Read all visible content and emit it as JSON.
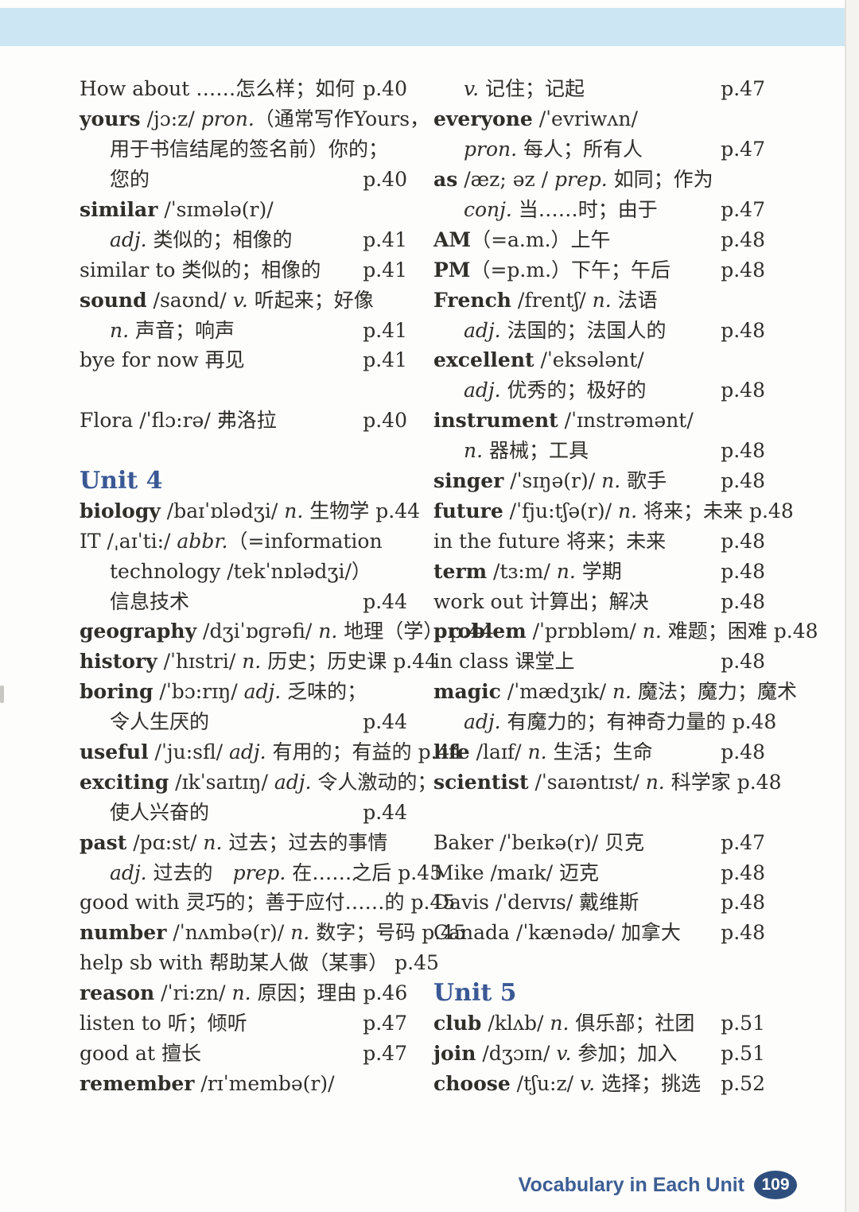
{
  "colors": {
    "unit_heading_blue": "#3a5894",
    "footer_blue": "#3d5e94",
    "badge_bg": "#2e4f7e",
    "top_bar_blue": "#cde6f4",
    "body_text": "#302e29"
  },
  "footer": {
    "title": "Vocabulary in Each Unit",
    "page_number": "109"
  },
  "columns": {
    "left": [
      {
        "type": "entry",
        "segments": [
          [
            "n",
            "How about ……怎么样；如何"
          ]
        ],
        "page": "p.40"
      },
      {
        "type": "entry",
        "segments": [
          [
            "b",
            "yours"
          ],
          [
            "n",
            " /jɔ:z/ "
          ],
          [
            "i",
            "pron."
          ],
          [
            "n",
            "（通常写作Yours，"
          ]
        ],
        "page": ""
      },
      {
        "type": "entry",
        "indent": true,
        "segments": [
          [
            "n",
            "用于书信结尾的签名前）你的；"
          ]
        ],
        "page": ""
      },
      {
        "type": "entry",
        "indent": true,
        "segments": [
          [
            "n",
            "您的"
          ]
        ],
        "page": "p.40"
      },
      {
        "type": "entry",
        "segments": [
          [
            "b",
            "similar"
          ],
          [
            "n",
            " /ˈsɪmələ(r)/"
          ]
        ],
        "page": ""
      },
      {
        "type": "entry",
        "indent": true,
        "segments": [
          [
            "i",
            "adj."
          ],
          [
            "n",
            " 类似的；相像的"
          ]
        ],
        "page": "p.41"
      },
      {
        "type": "entry",
        "segments": [
          [
            "n",
            "similar to 类似的；相像的"
          ]
        ],
        "page": "p.41"
      },
      {
        "type": "entry",
        "segments": [
          [
            "b",
            "sound"
          ],
          [
            "n",
            " /saʊnd/ "
          ],
          [
            "i",
            "v."
          ],
          [
            "n",
            " 听起来；好像"
          ]
        ],
        "page": ""
      },
      {
        "type": "entry",
        "indent": true,
        "segments": [
          [
            "i",
            "n."
          ],
          [
            "n",
            " 声音；响声"
          ]
        ],
        "page": "p.41"
      },
      {
        "type": "entry",
        "segments": [
          [
            "n",
            "bye for now 再见"
          ]
        ],
        "page": "p.41"
      },
      {
        "type": "blank"
      },
      {
        "type": "entry",
        "segments": [
          [
            "n",
            "Flora /ˈflɔ:rə/ 弗洛拉"
          ]
        ],
        "page": "p.40"
      },
      {
        "type": "blank"
      },
      {
        "type": "head",
        "segments": [
          [
            "n",
            "Unit 4"
          ]
        ],
        "page": ""
      },
      {
        "type": "entry",
        "segments": [
          [
            "b",
            "biology"
          ],
          [
            "n",
            " /baɪˈɒlədʒi/ "
          ],
          [
            "i",
            "n."
          ],
          [
            "n",
            " 生物学"
          ]
        ],
        "page": "p.44"
      },
      {
        "type": "entry",
        "segments": [
          [
            "n",
            "IT /ˌaɪˈti:/ "
          ],
          [
            "i",
            "abbr."
          ],
          [
            "n",
            "（=information"
          ]
        ],
        "page": ""
      },
      {
        "type": "entry",
        "indent": true,
        "segments": [
          [
            "n",
            "technology /tekˈnɒlədʒi/）"
          ]
        ],
        "page": ""
      },
      {
        "type": "entry",
        "indent": true,
        "segments": [
          [
            "n",
            "信息技术"
          ]
        ],
        "page": "p.44"
      },
      {
        "type": "entry",
        "segments": [
          [
            "b",
            "geography"
          ],
          [
            "n",
            " /dʒiˈɒɡrəfi/ "
          ],
          [
            "i",
            "n."
          ],
          [
            "n",
            " 地理（学）"
          ]
        ],
        "page": "p.44"
      },
      {
        "type": "entry",
        "segments": [
          [
            "b",
            "history"
          ],
          [
            "n",
            " /ˈhɪstri/ "
          ],
          [
            "i",
            "n."
          ],
          [
            "n",
            " 历史；历史课"
          ]
        ],
        "page": "p.44"
      },
      {
        "type": "entry",
        "segments": [
          [
            "b",
            "boring"
          ],
          [
            "n",
            " /ˈbɔ:rɪŋ/ "
          ],
          [
            "i",
            "adj."
          ],
          [
            "n",
            " 乏味的；"
          ]
        ],
        "page": ""
      },
      {
        "type": "entry",
        "indent": true,
        "segments": [
          [
            "n",
            "令人生厌的"
          ]
        ],
        "page": "p.44"
      },
      {
        "type": "entry",
        "segments": [
          [
            "b",
            "useful"
          ],
          [
            "n",
            " /ˈju:sfl/ "
          ],
          [
            "i",
            "adj."
          ],
          [
            "n",
            " 有用的；有益的"
          ]
        ],
        "page": "p.44"
      },
      {
        "type": "entry",
        "segments": [
          [
            "b",
            "exciting"
          ],
          [
            "n",
            " /ɪkˈsaɪtɪŋ/ "
          ],
          [
            "i",
            "adj."
          ],
          [
            "n",
            " 令人激动的；"
          ]
        ],
        "page": ""
      },
      {
        "type": "entry",
        "indent": true,
        "segments": [
          [
            "n",
            "使人兴奋的"
          ]
        ],
        "page": "p.44"
      },
      {
        "type": "entry",
        "segments": [
          [
            "b",
            "past"
          ],
          [
            "n",
            " /pɑ:st/ "
          ],
          [
            "i",
            "n."
          ],
          [
            "n",
            " 过去；过去的事情"
          ]
        ],
        "page": ""
      },
      {
        "type": "entry",
        "indent": true,
        "segments": [
          [
            "i",
            "adj."
          ],
          [
            "n",
            " 过去的　"
          ],
          [
            "i",
            "prep."
          ],
          [
            "n",
            " 在……之后"
          ]
        ],
        "page": "p.45"
      },
      {
        "type": "entry",
        "segments": [
          [
            "n",
            "good with 灵巧的；善于应付……的"
          ]
        ],
        "page": "p.45"
      },
      {
        "type": "entry",
        "segments": [
          [
            "b",
            "number"
          ],
          [
            "n",
            " /ˈnʌmbə(r)/ "
          ],
          [
            "i",
            "n."
          ],
          [
            "n",
            " 数字；号码"
          ]
        ],
        "page": "p.45"
      },
      {
        "type": "entry",
        "segments": [
          [
            "n",
            "help sb with 帮助某人做（某事）"
          ]
        ],
        "page": "p.45"
      },
      {
        "type": "entry",
        "segments": [
          [
            "b",
            "reason"
          ],
          [
            "n",
            " /ˈri:zn/ "
          ],
          [
            "i",
            "n."
          ],
          [
            "n",
            " 原因；理由"
          ]
        ],
        "page": "p.46"
      },
      {
        "type": "entry",
        "segments": [
          [
            "n",
            "listen to 听；倾听"
          ]
        ],
        "page": "p.47"
      },
      {
        "type": "entry",
        "segments": [
          [
            "n",
            "good at 擅长"
          ]
        ],
        "page": "p.47"
      },
      {
        "type": "entry",
        "segments": [
          [
            "b",
            "remember"
          ],
          [
            "n",
            " /rɪˈmembə(r)/"
          ]
        ],
        "page": ""
      }
    ],
    "right": [
      {
        "type": "entry",
        "indent": true,
        "segments": [
          [
            "i",
            "v."
          ],
          [
            "n",
            " 记住；记起"
          ]
        ],
        "page": "p.47"
      },
      {
        "type": "entry",
        "segments": [
          [
            "b",
            "everyone"
          ],
          [
            "n",
            " /ˈevriwʌn/"
          ]
        ],
        "page": ""
      },
      {
        "type": "entry",
        "indent": true,
        "segments": [
          [
            "i",
            "pron."
          ],
          [
            "n",
            " 每人；所有人"
          ]
        ],
        "page": "p.47"
      },
      {
        "type": "entry",
        "segments": [
          [
            "b",
            "as"
          ],
          [
            "n",
            " /æz; əz / "
          ],
          [
            "i",
            "prep."
          ],
          [
            "n",
            " 如同；作为"
          ]
        ],
        "page": ""
      },
      {
        "type": "entry",
        "indent": true,
        "segments": [
          [
            "i",
            "conj."
          ],
          [
            "n",
            " 当……时；由于"
          ]
        ],
        "page": "p.47"
      },
      {
        "type": "entry",
        "segments": [
          [
            "b",
            "AM"
          ],
          [
            "n",
            "（=a.m.）上午"
          ]
        ],
        "page": "p.48"
      },
      {
        "type": "entry",
        "segments": [
          [
            "b",
            "PM"
          ],
          [
            "n",
            "（=p.m.）下午；午后"
          ]
        ],
        "page": "p.48"
      },
      {
        "type": "entry",
        "segments": [
          [
            "b",
            "French"
          ],
          [
            "n",
            " /frentʃ/ "
          ],
          [
            "i",
            "n."
          ],
          [
            "n",
            " 法语"
          ]
        ],
        "page": ""
      },
      {
        "type": "entry",
        "indent": true,
        "segments": [
          [
            "i",
            "adj."
          ],
          [
            "n",
            " 法国的；法国人的"
          ]
        ],
        "page": "p.48"
      },
      {
        "type": "entry",
        "segments": [
          [
            "b",
            "excellent"
          ],
          [
            "n",
            " /ˈeksələnt/"
          ]
        ],
        "page": ""
      },
      {
        "type": "entry",
        "indent": true,
        "segments": [
          [
            "i",
            "adj."
          ],
          [
            "n",
            " 优秀的；极好的"
          ]
        ],
        "page": "p.48"
      },
      {
        "type": "entry",
        "segments": [
          [
            "b",
            "instrument"
          ],
          [
            "n",
            " /ˈɪnstrəmənt/"
          ]
        ],
        "page": ""
      },
      {
        "type": "entry",
        "indent": true,
        "segments": [
          [
            "i",
            "n."
          ],
          [
            "n",
            " 器械；工具"
          ]
        ],
        "page": "p.48"
      },
      {
        "type": "entry",
        "segments": [
          [
            "b",
            "singer"
          ],
          [
            "n",
            " /ˈsɪŋə(r)/ "
          ],
          [
            "i",
            "n."
          ],
          [
            "n",
            " 歌手"
          ]
        ],
        "page": "p.48"
      },
      {
        "type": "entry",
        "segments": [
          [
            "b",
            "future"
          ],
          [
            "n",
            " /ˈfju:tʃə(r)/ "
          ],
          [
            "i",
            "n."
          ],
          [
            "n",
            " 将来；未来"
          ]
        ],
        "page": "p.48"
      },
      {
        "type": "entry",
        "segments": [
          [
            "n",
            "in the future 将来；未来"
          ]
        ],
        "page": "p.48"
      },
      {
        "type": "entry",
        "segments": [
          [
            "b",
            "term"
          ],
          [
            "n",
            " /tɜ:m/ "
          ],
          [
            "i",
            "n."
          ],
          [
            "n",
            " 学期"
          ]
        ],
        "page": "p.48"
      },
      {
        "type": "entry",
        "segments": [
          [
            "n",
            "work out 计算出；解决"
          ]
        ],
        "page": "p.48"
      },
      {
        "type": "entry",
        "segments": [
          [
            "b",
            "problem"
          ],
          [
            "n",
            " /ˈprɒbləm/ "
          ],
          [
            "i",
            "n."
          ],
          [
            "n",
            " 难题；困难"
          ]
        ],
        "page": "p.48"
      },
      {
        "type": "entry",
        "segments": [
          [
            "n",
            "in class 课堂上"
          ]
        ],
        "page": "p.48"
      },
      {
        "type": "entry",
        "segments": [
          [
            "b",
            "magic"
          ],
          [
            "n",
            " /ˈmædʒɪk/ "
          ],
          [
            "i",
            "n."
          ],
          [
            "n",
            " 魔法；魔力；魔术"
          ]
        ],
        "page": ""
      },
      {
        "type": "entry",
        "indent": true,
        "segments": [
          [
            "i",
            "adj."
          ],
          [
            "n",
            " 有魔力的；有神奇力量的"
          ]
        ],
        "page": "p.48"
      },
      {
        "type": "entry",
        "segments": [
          [
            "b",
            "life"
          ],
          [
            "n",
            " /laɪf/ "
          ],
          [
            "i",
            "n."
          ],
          [
            "n",
            " 生活；生命"
          ]
        ],
        "page": "p.48"
      },
      {
        "type": "entry",
        "segments": [
          [
            "b",
            "scientist"
          ],
          [
            "n",
            " /ˈsaɪəntɪst/ "
          ],
          [
            "i",
            "n."
          ],
          [
            "n",
            " 科学家"
          ]
        ],
        "page": "p.48"
      },
      {
        "type": "blank"
      },
      {
        "type": "entry",
        "segments": [
          [
            "n",
            "Baker /ˈbeɪkə(r)/ 贝克"
          ]
        ],
        "page": "p.47"
      },
      {
        "type": "entry",
        "segments": [
          [
            "n",
            "Mike /maɪk/ 迈克"
          ]
        ],
        "page": "p.48"
      },
      {
        "type": "entry",
        "segments": [
          [
            "n",
            "Davis /ˈdeɪvɪs/ 戴维斯"
          ]
        ],
        "page": "p.48"
      },
      {
        "type": "entry",
        "segments": [
          [
            "n",
            "Canada /ˈkænədə/ 加拿大"
          ]
        ],
        "page": "p.48"
      },
      {
        "type": "blank"
      },
      {
        "type": "head",
        "segments": [
          [
            "n",
            "Unit 5"
          ]
        ],
        "page": ""
      },
      {
        "type": "entry",
        "segments": [
          [
            "b",
            "club"
          ],
          [
            "n",
            " /klʌb/ "
          ],
          [
            "i",
            "n."
          ],
          [
            "n",
            " 俱乐部；社团"
          ]
        ],
        "page": "p.51"
      },
      {
        "type": "entry",
        "segments": [
          [
            "b",
            "join"
          ],
          [
            "n",
            " /dʒɔɪn/ "
          ],
          [
            "i",
            "v."
          ],
          [
            "n",
            " 参加；加入"
          ]
        ],
        "page": "p.51"
      },
      {
        "type": "entry",
        "segments": [
          [
            "b",
            "choose"
          ],
          [
            "n",
            " /tʃu:z/ "
          ],
          [
            "i",
            "v."
          ],
          [
            "n",
            " 选择；挑选"
          ]
        ],
        "page": "p.52"
      }
    ]
  }
}
